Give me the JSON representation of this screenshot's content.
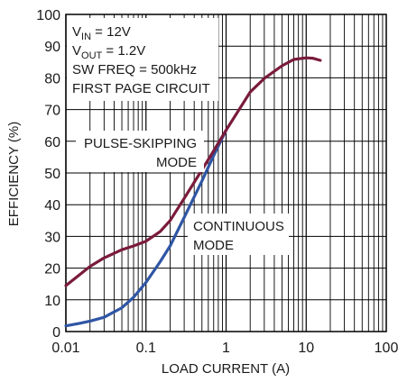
{
  "chart_data": {
    "type": "line",
    "title": "",
    "xlabel": "LOAD CURRENT (A)",
    "ylabel": "EFFICIENCY (%)",
    "xscale": "log",
    "xlim": [
      0.01,
      100
    ],
    "ylim": [
      0,
      100
    ],
    "grid": true,
    "x_ticks": [
      "0.01",
      "0.1",
      "1",
      "10",
      "100"
    ],
    "y_ticks": [
      "0",
      "10",
      "20",
      "30",
      "40",
      "50",
      "60",
      "70",
      "80",
      "90",
      "100"
    ],
    "annotations": {
      "conditions": {
        "vin_main": "V",
        "vin_sub": "IN",
        "vin_rest": " = 12V",
        "vout_main": "V",
        "vout_sub": "OUT",
        "vout_rest": " = 1.2V",
        "swfreq": "SW FREQ = 500kHz",
        "circuit": "FIRST PAGE CIRCUIT"
      },
      "pulse_skipping": [
        "PULSE-SKIPPING",
        "MODE"
      ],
      "continuous": [
        "CONTINUOUS",
        "MODE"
      ]
    },
    "colors": {
      "pulse_skipping": "#7a1b3c",
      "continuous": "#2f55a4",
      "grid": "#000000"
    },
    "series": [
      {
        "id": "pulse_skipping",
        "values": [
          {
            "x": 0.01,
            "y": 14.5
          },
          {
            "x": 0.015,
            "y": 18
          },
          {
            "x": 0.02,
            "y": 20.5
          },
          {
            "x": 0.03,
            "y": 23.2
          },
          {
            "x": 0.05,
            "y": 25.8
          },
          {
            "x": 0.07,
            "y": 27
          },
          {
            "x": 0.1,
            "y": 28.5
          },
          {
            "x": 0.15,
            "y": 31.5
          },
          {
            "x": 0.2,
            "y": 35
          },
          {
            "x": 0.3,
            "y": 42
          },
          {
            "x": 0.5,
            "y": 51
          },
          {
            "x": 0.7,
            "y": 57
          },
          {
            "x": 1,
            "y": 63.5
          },
          {
            "x": 1.5,
            "y": 70.5
          },
          {
            "x": 2,
            "y": 75.5
          },
          {
            "x": 3,
            "y": 79.8
          },
          {
            "x": 5,
            "y": 83.8
          },
          {
            "x": 7,
            "y": 85.8
          },
          {
            "x": 10,
            "y": 86.3
          },
          {
            "x": 12,
            "y": 86.2
          },
          {
            "x": 15,
            "y": 85.5
          }
        ]
      },
      {
        "id": "continuous",
        "values": [
          {
            "x": 0.01,
            "y": 1.8
          },
          {
            "x": 0.015,
            "y": 2.6
          },
          {
            "x": 0.02,
            "y": 3.3
          },
          {
            "x": 0.03,
            "y": 4.5
          },
          {
            "x": 0.05,
            "y": 7.5
          },
          {
            "x": 0.07,
            "y": 10.8
          },
          {
            "x": 0.1,
            "y": 15.5
          },
          {
            "x": 0.15,
            "y": 22
          },
          {
            "x": 0.2,
            "y": 27
          },
          {
            "x": 0.3,
            "y": 36
          },
          {
            "x": 0.5,
            "y": 47.5
          },
          {
            "x": 0.7,
            "y": 55.5
          },
          {
            "x": 1,
            "y": 63.5
          }
        ]
      }
    ]
  }
}
